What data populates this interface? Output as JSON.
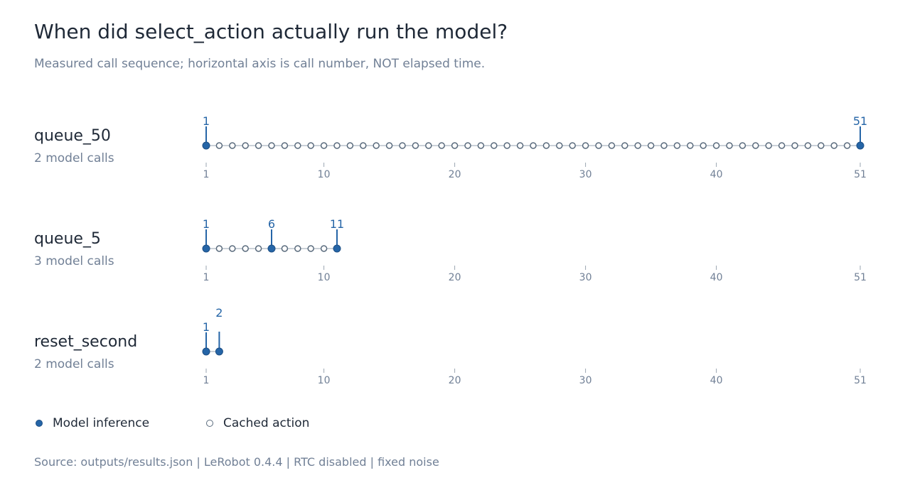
{
  "title": "When did select_action actually run the model?",
  "subtitle": "Measured call sequence; horizontal axis is call number, NOT elapsed time.",
  "legend": {
    "inference_label": "Model inference",
    "cached_label": "Cached action"
  },
  "source": "Source: outputs/results.json | LeRobot 0.4.4 | RTC disabled | fixed noise",
  "colors": {
    "inference": "#2565a7",
    "cached_stroke": "#5a6b7d",
    "track": "#b8c2cc",
    "tick_text": "#718096",
    "label_text": "#2565a7"
  },
  "chart_data": {
    "type": "scatter",
    "x_label": "",
    "xlim": [
      1,
      51
    ],
    "x_ticks": [
      1,
      10,
      20,
      30,
      40,
      51
    ],
    "rows": [
      {
        "name": "queue_50",
        "summary": "2 model calls",
        "total_calls": 51,
        "model_calls": [
          1,
          51
        ]
      },
      {
        "name": "queue_5",
        "summary": "3 model calls",
        "total_calls": 11,
        "model_calls": [
          1,
          6,
          11
        ]
      },
      {
        "name": "reset_second",
        "summary": "2 model calls",
        "total_calls": 2,
        "model_calls": [
          1,
          2
        ]
      }
    ]
  }
}
